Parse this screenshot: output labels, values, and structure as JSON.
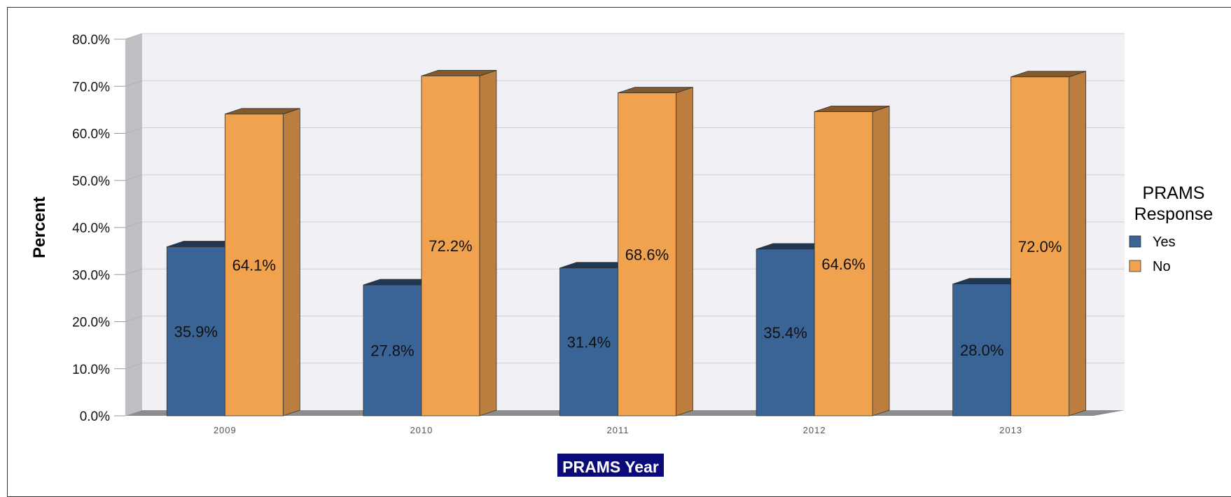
{
  "chart_data": {
    "type": "bar",
    "title": "",
    "xlabel": "PRAMS Year",
    "ylabel": "Percent",
    "categories": [
      "2009",
      "2010",
      "2011",
      "2012",
      "2013"
    ],
    "series": [
      {
        "name": "Yes",
        "values": [
          35.9,
          27.8,
          31.4,
          35.4,
          28.0
        ],
        "labels": [
          "35.9%",
          "27.8%",
          "31.4%",
          "35.4%",
          "28.0%"
        ],
        "color": "#3a6496"
      },
      {
        "name": "No",
        "values": [
          64.1,
          72.2,
          68.6,
          64.6,
          72.0
        ],
        "labels": [
          "64.1%",
          "72.2%",
          "68.6%",
          "64.6%",
          "72.0%"
        ],
        "color": "#f0a24f"
      }
    ],
    "ylim": [
      0,
      80
    ],
    "yticks": [
      0,
      10,
      20,
      30,
      40,
      50,
      60,
      70,
      80
    ],
    "ytick_labels": [
      "0.0%",
      "10.0%",
      "20.0%",
      "30.0%",
      "40.0%",
      "50.0%",
      "60.0%",
      "70.0%",
      "80.0%"
    ],
    "legend": {
      "title": "PRAMS Response",
      "title_lines": [
        "PRAMS",
        "Response"
      ],
      "position": "right"
    },
    "grid": true,
    "style": "3d-bar"
  }
}
